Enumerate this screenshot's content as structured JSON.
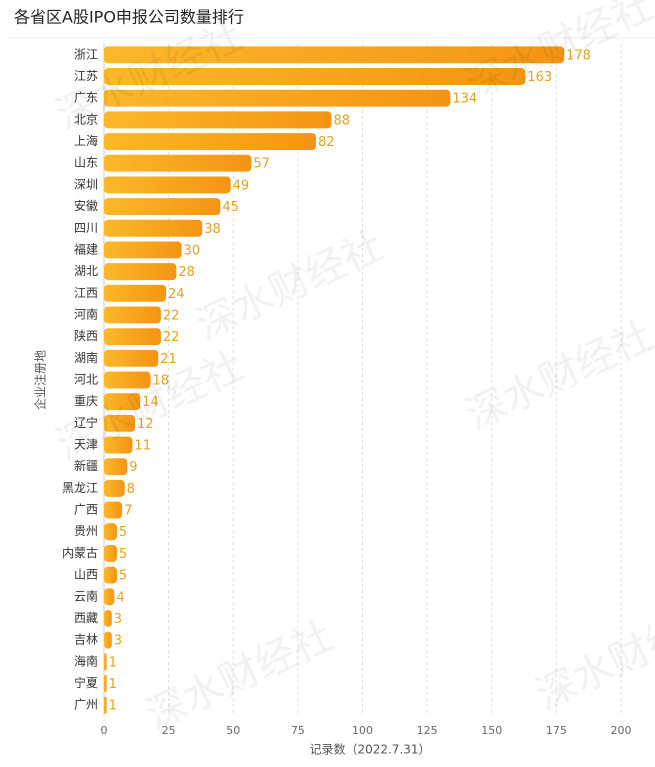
{
  "chart_data": {
    "type": "bar",
    "orientation": "horizontal",
    "title": "各省区A股IPO申报公司数量排行",
    "x_label": "记录数（2022.7.31）",
    "y_label": "企业注册地",
    "watermark": "深水财经社",
    "categories": [
      "浙江",
      "江苏",
      "广东",
      "北京",
      "上海",
      "山东",
      "深圳",
      "安徽",
      "四川",
      "福建",
      "湖北",
      "江西",
      "河南",
      "陕西",
      "湖南",
      "河北",
      "重庆",
      "辽宁",
      "天津",
      "新疆",
      "黑龙江",
      "广西",
      "贵州",
      "内蒙古",
      "山西",
      "云南",
      "西藏",
      "吉林",
      "海南",
      "宁夏",
      "广州"
    ],
    "values": [
      178,
      163,
      134,
      88,
      82,
      57,
      49,
      45,
      38,
      30,
      28,
      24,
      22,
      22,
      21,
      18,
      14,
      12,
      11,
      9,
      8,
      7,
      5,
      5,
      5,
      4,
      3,
      3,
      1,
      1,
      1
    ],
    "color": "#f7a11a",
    "xlim": [
      0,
      200
    ],
    "xticks": [
      0,
      25,
      50,
      75,
      100,
      125,
      150,
      175,
      200
    ],
    "grid": true
  }
}
